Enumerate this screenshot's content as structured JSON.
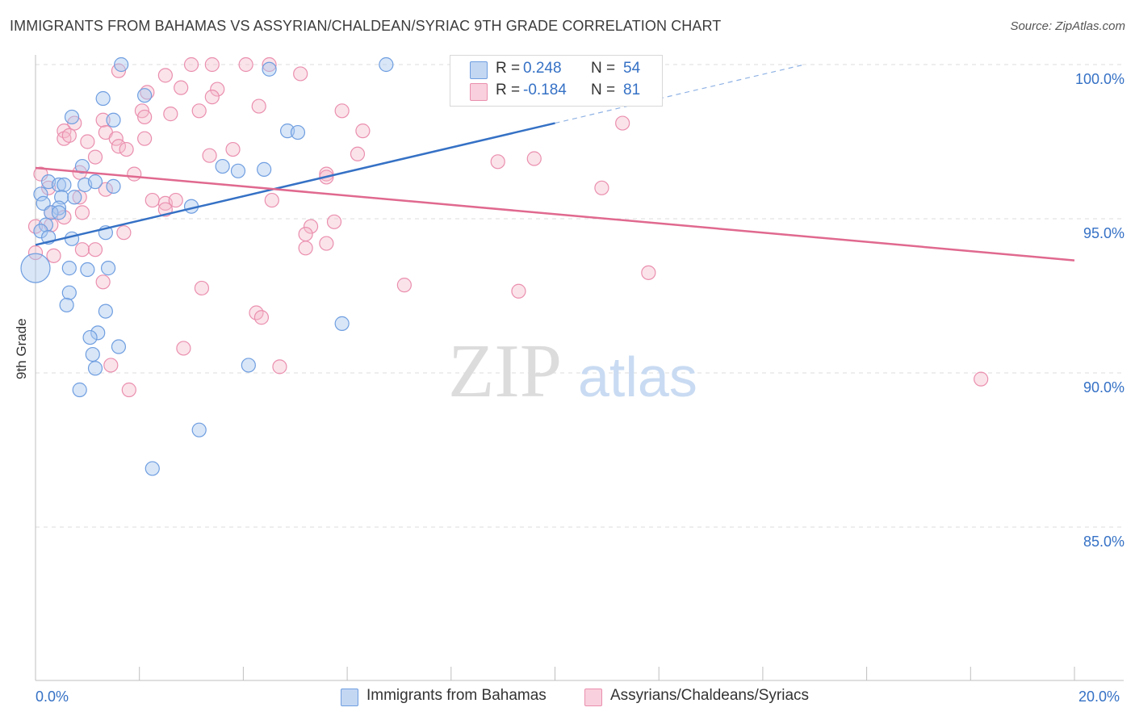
{
  "header": {
    "title": "IMMIGRANTS FROM BAHAMAS VS ASSYRIAN/CHALDEAN/SYRIAC 9TH GRADE CORRELATION CHART",
    "source": "Source: ZipAtlas.com"
  },
  "watermark": {
    "zip": "ZIP",
    "atlas": "atlas"
  },
  "stats": {
    "blue": {
      "r_label": "R =",
      "r_value": "0.248",
      "n_label": "N =",
      "n_value": "54",
      "color": "#a9c7ef"
    },
    "pink": {
      "r_label": "R =",
      "r_value": "-0.184",
      "n_label": "N =",
      "n_value": "81",
      "color": "#f6b8cb"
    }
  },
  "legend": {
    "blue_label": "Immigrants from Bahamas",
    "pink_label": "Assyrians/Chaldeans/Syriacs"
  },
  "axis": {
    "x_min_label": "0.0%",
    "x_max_label": "20.0%",
    "y_label": "9th Grade"
  },
  "chart_data": {
    "type": "scatter",
    "title": "IMMIGRANTS FROM BAHAMAS VS ASSYRIAN/CHALDEAN/SYRIAC 9TH GRADE CORRELATION CHART",
    "xlabel": "",
    "ylabel": "9th Grade",
    "xlim": [
      0,
      20
    ],
    "ylim": [
      80.5,
      100.8
    ],
    "y_ticks": [
      85,
      90,
      95,
      100
    ],
    "y_tick_labels": [
      "85.0%",
      "90.0%",
      "95.0%",
      "100.0%"
    ],
    "x_tick_labels": [
      "0.0%",
      "20.0%"
    ],
    "grid": true,
    "colors": {
      "blue": "#3571c5",
      "blue_fill": "#a9c7ef",
      "pink": "#e0698f",
      "pink_fill": "#f6b8cb"
    },
    "series": [
      {
        "name": "Immigrants from Bahamas",
        "color": "#3571c5",
        "trend": {
          "x0": 0,
          "y0": 94.15,
          "x1": 10,
          "y1": 98.1,
          "dash_x1": 14.8,
          "dash_y1": 100.0
        },
        "points": [
          [
            1.65,
            100.0
          ],
          [
            6.75,
            100.0
          ],
          [
            4.5,
            99.85
          ],
          [
            1.3,
            98.9
          ],
          [
            2.1,
            99.0
          ],
          [
            0.7,
            98.3
          ],
          [
            1.5,
            98.2
          ],
          [
            4.85,
            97.85
          ],
          [
            5.05,
            97.8
          ],
          [
            3.6,
            96.7
          ],
          [
            3.9,
            96.55
          ],
          [
            4.4,
            96.6
          ],
          [
            0.9,
            96.7
          ],
          [
            0.25,
            96.2
          ],
          [
            0.45,
            96.1
          ],
          [
            0.55,
            96.1
          ],
          [
            0.95,
            96.1
          ],
          [
            1.15,
            96.2
          ],
          [
            1.5,
            96.05
          ],
          [
            0.1,
            95.8
          ],
          [
            0.15,
            95.5
          ],
          [
            0.5,
            95.7
          ],
          [
            0.75,
            95.7
          ],
          [
            0.45,
            95.35
          ],
          [
            0.3,
            95.2
          ],
          [
            0.45,
            95.2
          ],
          [
            3.0,
            95.4
          ],
          [
            0.2,
            94.8
          ],
          [
            0.1,
            94.6
          ],
          [
            0.25,
            94.4
          ],
          [
            0.7,
            94.35
          ],
          [
            1.35,
            94.55
          ],
          [
            0.0,
            93.4
          ],
          [
            0.65,
            93.4
          ],
          [
            1.0,
            93.35
          ],
          [
            1.4,
            93.4
          ],
          [
            0.65,
            92.6
          ],
          [
            0.6,
            92.2
          ],
          [
            1.35,
            92.0
          ],
          [
            1.2,
            91.3
          ],
          [
            1.05,
            91.15
          ],
          [
            1.6,
            90.85
          ],
          [
            1.1,
            90.6
          ],
          [
            1.15,
            90.15
          ],
          [
            4.1,
            90.25
          ],
          [
            5.9,
            91.6
          ],
          [
            0.85,
            89.45
          ],
          [
            3.15,
            88.15
          ],
          [
            2.25,
            86.9
          ]
        ]
      },
      {
        "name": "Assyrians/Chaldeans/Syriacs",
        "color": "#e0698f",
        "trend": {
          "x0": 0,
          "y0": 96.65,
          "x1": 20,
          "y1": 93.65
        },
        "points": [
          [
            3.0,
            100.0
          ],
          [
            3.4,
            100.0
          ],
          [
            4.05,
            100.0
          ],
          [
            4.5,
            100.0
          ],
          [
            1.6,
            99.8
          ],
          [
            2.5,
            99.65
          ],
          [
            5.1,
            99.7
          ],
          [
            2.15,
            99.1
          ],
          [
            2.8,
            99.25
          ],
          [
            3.5,
            99.2
          ],
          [
            3.4,
            98.95
          ],
          [
            4.3,
            98.65
          ],
          [
            2.05,
            98.5
          ],
          [
            2.1,
            98.3
          ],
          [
            2.6,
            98.4
          ],
          [
            3.15,
            98.5
          ],
          [
            5.9,
            98.5
          ],
          [
            1.3,
            98.2
          ],
          [
            0.75,
            98.1
          ],
          [
            0.55,
            97.85
          ],
          [
            0.55,
            97.6
          ],
          [
            0.65,
            97.7
          ],
          [
            1.35,
            97.8
          ],
          [
            1.55,
            97.6
          ],
          [
            1.6,
            97.35
          ],
          [
            1.75,
            97.25
          ],
          [
            2.1,
            97.6
          ],
          [
            1.0,
            97.5
          ],
          [
            1.15,
            97.0
          ],
          [
            3.35,
            97.05
          ],
          [
            3.8,
            97.25
          ],
          [
            6.3,
            97.85
          ],
          [
            6.2,
            97.1
          ],
          [
            8.9,
            96.85
          ],
          [
            9.6,
            96.95
          ],
          [
            11.3,
            98.1
          ],
          [
            0.1,
            96.45
          ],
          [
            0.25,
            96.0
          ],
          [
            0.85,
            96.5
          ],
          [
            1.35,
            95.95
          ],
          [
            1.9,
            96.45
          ],
          [
            5.6,
            96.45
          ],
          [
            5.6,
            96.35
          ],
          [
            2.25,
            95.6
          ],
          [
            2.5,
            95.5
          ],
          [
            2.5,
            95.3
          ],
          [
            2.7,
            95.6
          ],
          [
            4.55,
            95.6
          ],
          [
            0.85,
            95.7
          ],
          [
            0.3,
            95.2
          ],
          [
            0.55,
            95.05
          ],
          [
            0.9,
            95.2
          ],
          [
            0.0,
            94.75
          ],
          [
            0.3,
            94.8
          ],
          [
            5.3,
            94.75
          ],
          [
            5.75,
            94.9
          ],
          [
            1.7,
            94.55
          ],
          [
            5.2,
            94.5
          ],
          [
            0.35,
            93.8
          ],
          [
            0.9,
            94.0
          ],
          [
            1.15,
            94.0
          ],
          [
            5.2,
            94.05
          ],
          [
            5.6,
            94.2
          ],
          [
            1.3,
            92.95
          ],
          [
            3.2,
            92.75
          ],
          [
            7.1,
            92.85
          ],
          [
            9.3,
            92.65
          ],
          [
            11.8,
            93.25
          ],
          [
            4.25,
            91.95
          ],
          [
            4.35,
            91.8
          ],
          [
            2.85,
            90.8
          ],
          [
            1.45,
            90.25
          ],
          [
            4.7,
            90.2
          ],
          [
            1.8,
            89.45
          ],
          [
            18.2,
            89.8
          ],
          [
            10.9,
            96.0
          ],
          [
            0.0,
            93.9
          ]
        ]
      }
    ]
  }
}
